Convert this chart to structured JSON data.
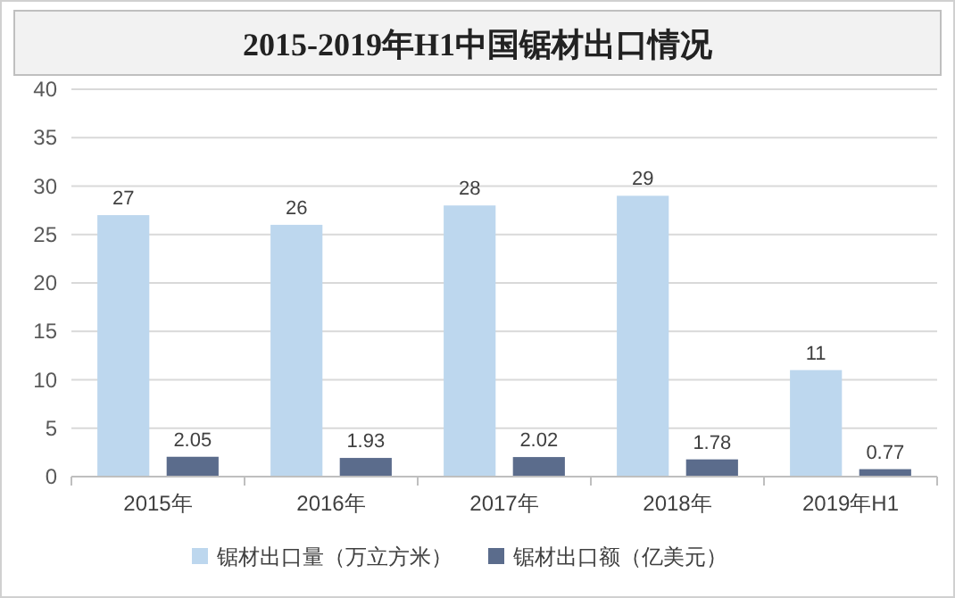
{
  "chart_data": {
    "type": "bar",
    "title": "2015-2019年H1中国锯材出口情况",
    "categories": [
      "2015年",
      "2016年",
      "2017年",
      "2018年",
      "2019年H1"
    ],
    "series": [
      {
        "name": "锯材出口量（万立方米）",
        "color": "#bdd7ee",
        "values": [
          27,
          26,
          28,
          29,
          11
        ]
      },
      {
        "name": "锯材出口额（亿美元）",
        "color": "#5b6c8c",
        "values": [
          2.05,
          1.93,
          2.02,
          1.78,
          0.77
        ]
      }
    ],
    "ylim": [
      0,
      40
    ],
    "yticks": [
      0,
      5,
      10,
      15,
      20,
      25,
      30,
      35,
      40
    ],
    "grid": "y",
    "legend": "bottom",
    "data_labels": true
  }
}
